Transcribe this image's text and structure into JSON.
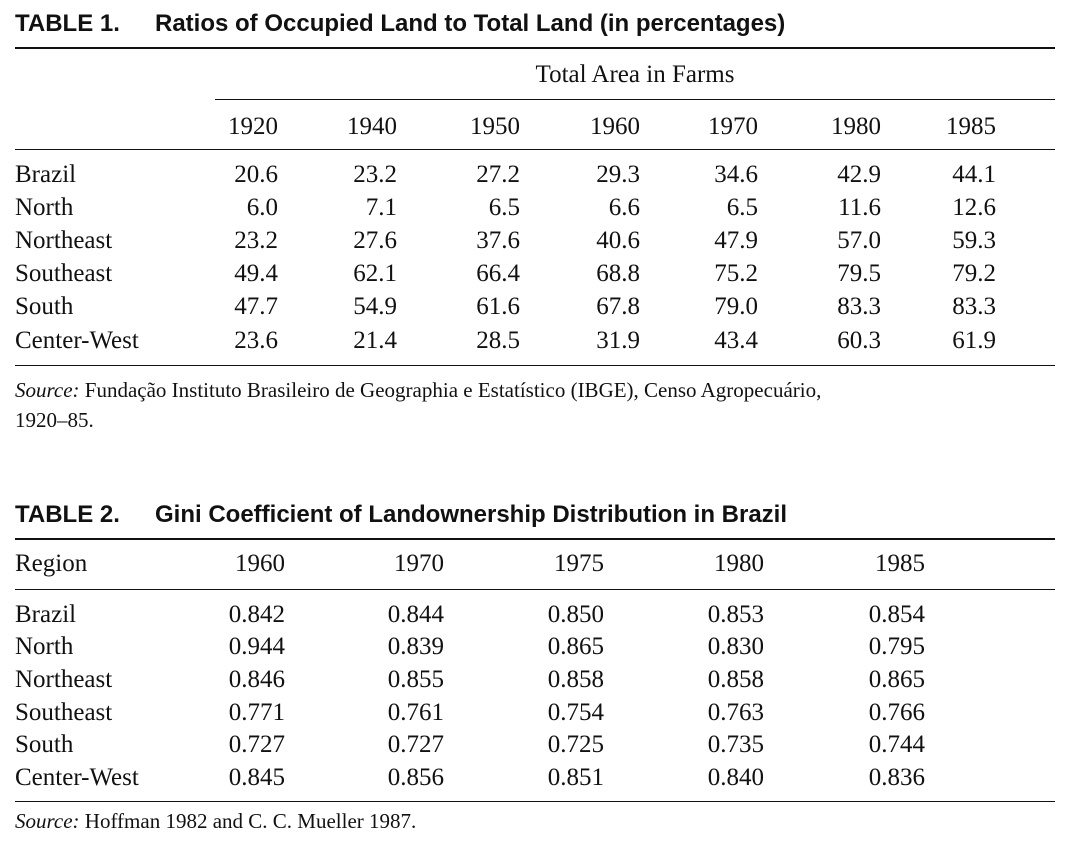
{
  "table1": {
    "number": "TABLE 1.",
    "title": "Ratios of Occupied Land to Total Land (in percentages)",
    "spanning_header": "Total Area in Farms",
    "years": [
      "1920",
      "1940",
      "1950",
      "1960",
      "1970",
      "1980",
      "1985"
    ],
    "rows": [
      {
        "region": "Brazil",
        "values": [
          "20.6",
          "23.2",
          "27.2",
          "29.3",
          "34.6",
          "42.9",
          "44.1"
        ]
      },
      {
        "region": "North",
        "values": [
          "6.0",
          "7.1",
          "6.5",
          "6.6",
          "6.5",
          "11.6",
          "12.6"
        ]
      },
      {
        "region": "Northeast",
        "values": [
          "23.2",
          "27.6",
          "37.6",
          "40.6",
          "47.9",
          "57.0",
          "59.3"
        ]
      },
      {
        "region": "Southeast",
        "values": [
          "49.4",
          "62.1",
          "66.4",
          "68.8",
          "75.2",
          "79.5",
          "79.2"
        ]
      },
      {
        "region": "South",
        "values": [
          "47.7",
          "54.9",
          "61.6",
          "67.8",
          "79.0",
          "83.3",
          "83.3"
        ]
      },
      {
        "region": "Center-West",
        "values": [
          "23.6",
          "21.4",
          "28.5",
          "31.9",
          "43.4",
          "60.3",
          "61.9"
        ]
      }
    ],
    "source_label": "Source:",
    "source_line1": "Fundação Instituto Brasileiro de Geographia e Estatístico (IBGE), Censo Agropecuário,",
    "source_line2": "1920–85."
  },
  "table2": {
    "number": "TABLE 2.",
    "title": "Gini Coefficient of Landownership Distribution in Brazil",
    "region_header": "Region",
    "years": [
      "1960",
      "1970",
      "1975",
      "1980",
      "1985"
    ],
    "rows": [
      {
        "region": "Brazil",
        "values": [
          "0.842",
          "0.844",
          "0.850",
          "0.853",
          "0.854"
        ]
      },
      {
        "region": "North",
        "values": [
          "0.944",
          "0.839",
          "0.865",
          "0.830",
          "0.795"
        ]
      },
      {
        "region": "Northeast",
        "values": [
          "0.846",
          "0.855",
          "0.858",
          "0.858",
          "0.865"
        ]
      },
      {
        "region": "Southeast",
        "values": [
          "0.771",
          "0.761",
          "0.754",
          "0.763",
          "0.766"
        ]
      },
      {
        "region": "South",
        "values": [
          "0.727",
          "0.727",
          "0.725",
          "0.735",
          "0.744"
        ]
      },
      {
        "region": "Center-West",
        "values": [
          "0.845",
          "0.856",
          "0.851",
          "0.840",
          "0.836"
        ]
      }
    ],
    "source_label": "Source:",
    "source_text": "Hoffman 1982 and C. C. Mueller 1987."
  }
}
